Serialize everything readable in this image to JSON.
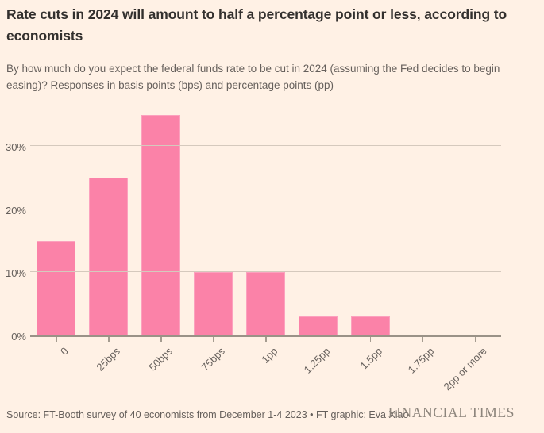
{
  "header": {
    "title": "Rate cuts in 2024 will amount to half a percentage point or less, according to economists",
    "subtitle": "By how much do you expect the federal funds rate to be cut in 2024 (assuming the Fed decides to begin easing)? Responses in basis points (bps) and percentage points (pp)"
  },
  "chart_data": {
    "type": "bar",
    "categories": [
      "0",
      "25bps",
      "50bps",
      "75bps",
      "1pp",
      "1.25pp",
      "1.5pp",
      "1.75pp",
      "2pp or more"
    ],
    "values": [
      15,
      25,
      35,
      10,
      10,
      3,
      3,
      0,
      0
    ],
    "title": "Rate cuts in 2024 will amount to half a percentage point or less, according to economists",
    "xlabel": "",
    "ylabel": "",
    "ylim": [
      0,
      36
    ],
    "yticks": [
      0,
      10,
      20,
      30
    ],
    "ytick_labels": [
      "0%",
      "10%",
      "20%",
      "30%"
    ],
    "grid": true,
    "legend": "none",
    "bar_color": "#fb82a8",
    "background_color": "#fff1e5"
  },
  "footer": {
    "source": "Source: FT-Booth survey of 40 economists from December 1-4 2023 • FT graphic: Eva Xiao",
    "logo": "FINANCIAL TIMES"
  }
}
